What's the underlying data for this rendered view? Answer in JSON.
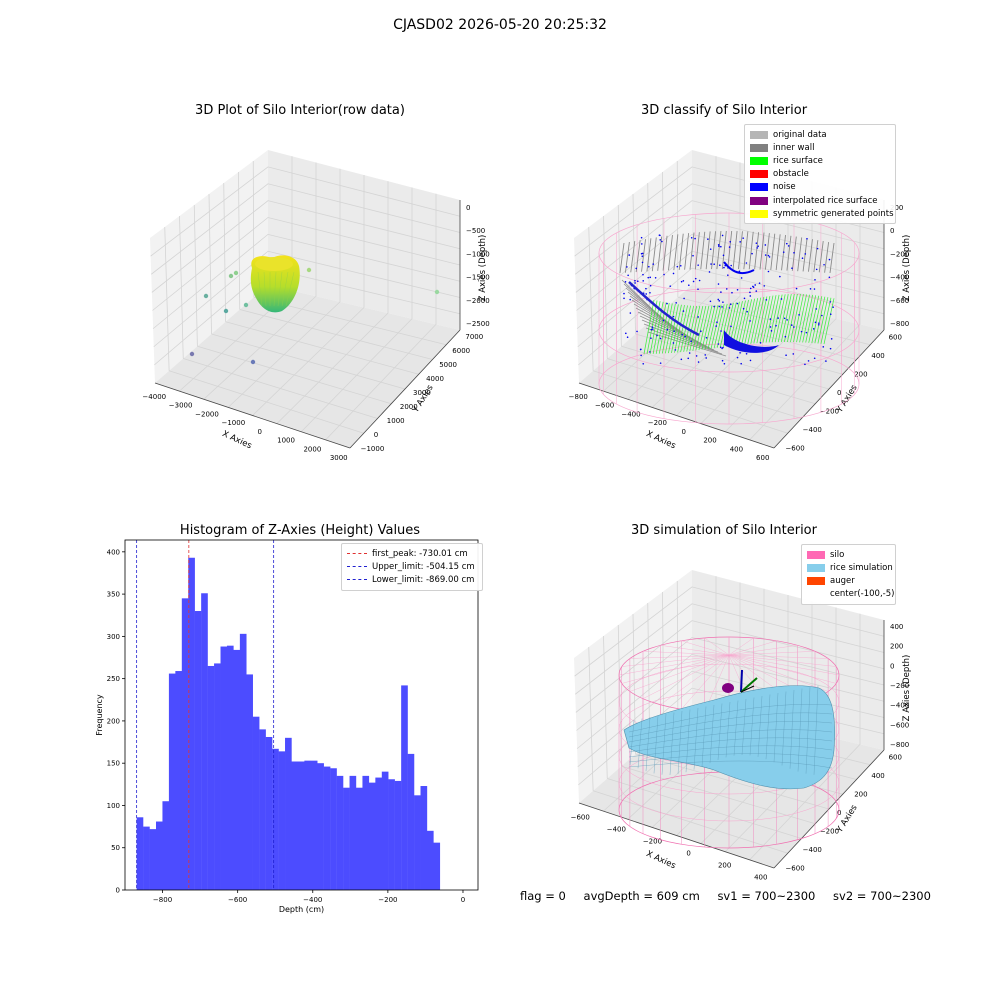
{
  "suptitle": "CJASD02 2026-05-20 20:25:32",
  "status": {
    "flag": "flag = 0",
    "avg_depth": "avgDepth = 609 cm",
    "sv1": "sv1 = 700~2300",
    "sv2": "sv2 = 700~2300"
  },
  "chart_data": [
    {
      "type": "scatter",
      "title": "3D Plot of Silo Interior(row data)",
      "xlabel": "X Axies",
      "ylabel": "Y Axies",
      "zlabel": "Z Axies (Depth)",
      "x_ticks": [
        -4000,
        -3000,
        -2000,
        -1000,
        0,
        1000,
        2000,
        3000
      ],
      "y_ticks": [
        -1000,
        0,
        1000,
        2000,
        3000,
        4000,
        5000,
        6000,
        7000
      ],
      "z_ticks": [
        0,
        -500,
        -1000,
        -1500,
        -2000,
        -2500
      ],
      "colors": {
        "surface_top": "#f5e21a",
        "surface_bottom": "#35b779"
      }
    },
    {
      "type": "scatter",
      "title": "3D classify of Silo Interior",
      "xlabel": "X Axies",
      "ylabel": "Y Axies",
      "zlabel": "Z Axies (Depth)",
      "x_ticks": [
        -800,
        -600,
        -400,
        -200,
        0,
        200,
        400,
        600
      ],
      "y_ticks": [
        -600,
        -400,
        -200,
        0,
        200,
        400,
        600
      ],
      "z_ticks": [
        200,
        0,
        -200,
        -400,
        -600,
        -800
      ],
      "legend": [
        {
          "label": "original data",
          "color": "#b5b5b5"
        },
        {
          "label": "inner wall",
          "color": "#808080"
        },
        {
          "label": "rice surface",
          "color": "#00ff00"
        },
        {
          "label": "obstacle",
          "color": "#ff0000"
        },
        {
          "label": "noise",
          "color": "#0000ff"
        },
        {
          "label": "interpolated rice surface",
          "color": "#800080"
        },
        {
          "label": "symmetric generated points",
          "color": "#ffff00"
        }
      ]
    },
    {
      "type": "bar",
      "title": "Histogram of Z-Axies (Height) Values",
      "xlabel": "Depth (cm)",
      "ylabel": "Frequency",
      "xlim": [
        -900,
        40
      ],
      "ylim": [
        0,
        414
      ],
      "x_ticks": [
        -800,
        -600,
        -400,
        -200,
        0
      ],
      "y_ticks": [
        0,
        50,
        100,
        150,
        200,
        250,
        300,
        350,
        400
      ],
      "bin_start": -869,
      "bin_width": 17.18,
      "values": [
        86,
        75,
        72,
        81,
        105,
        256,
        259,
        345,
        393,
        330,
        351,
        265,
        268,
        288,
        289,
        284,
        303,
        255,
        205,
        190,
        181,
        167,
        164,
        180,
        152,
        152,
        153,
        153,
        150,
        146,
        144,
        135,
        121,
        135,
        121,
        135,
        127,
        133,
        140,
        131,
        129,
        242,
        161,
        112,
        123,
        70,
        56
      ],
      "bar_color": "#4c4cff",
      "lines": [
        {
          "label": "first_peak: -730.01 cm",
          "x": -730.01,
          "color": "#e03030"
        },
        {
          "label": "Upper_limit: -504.15 cm",
          "x": -504.15,
          "color": "#2020d0"
        },
        {
          "label": "Lower_limit: -869.00 cm",
          "x": -869.0,
          "color": "#2020d0"
        }
      ]
    },
    {
      "type": "area",
      "title": "3D simulation of Silo Interior",
      "xlabel": "X Axies",
      "ylabel": "Y Axies",
      "zlabel": "Z Axies (Depth)",
      "x_ticks": [
        -600,
        -400,
        -200,
        0,
        200,
        400
      ],
      "y_ticks": [
        -600,
        -400,
        -200,
        0,
        200,
        400,
        600
      ],
      "z_ticks": [
        400,
        200,
        0,
        -200,
        -400,
        -600,
        -800
      ],
      "legend": [
        {
          "label": "silo",
          "color": "#ff69b4"
        },
        {
          "label": "rice simulation",
          "color": "#87ceeb"
        },
        {
          "label": "auger",
          "color": "#ff4500"
        },
        {
          "label": "center(-100,-5)",
          "color": ""
        }
      ]
    }
  ]
}
